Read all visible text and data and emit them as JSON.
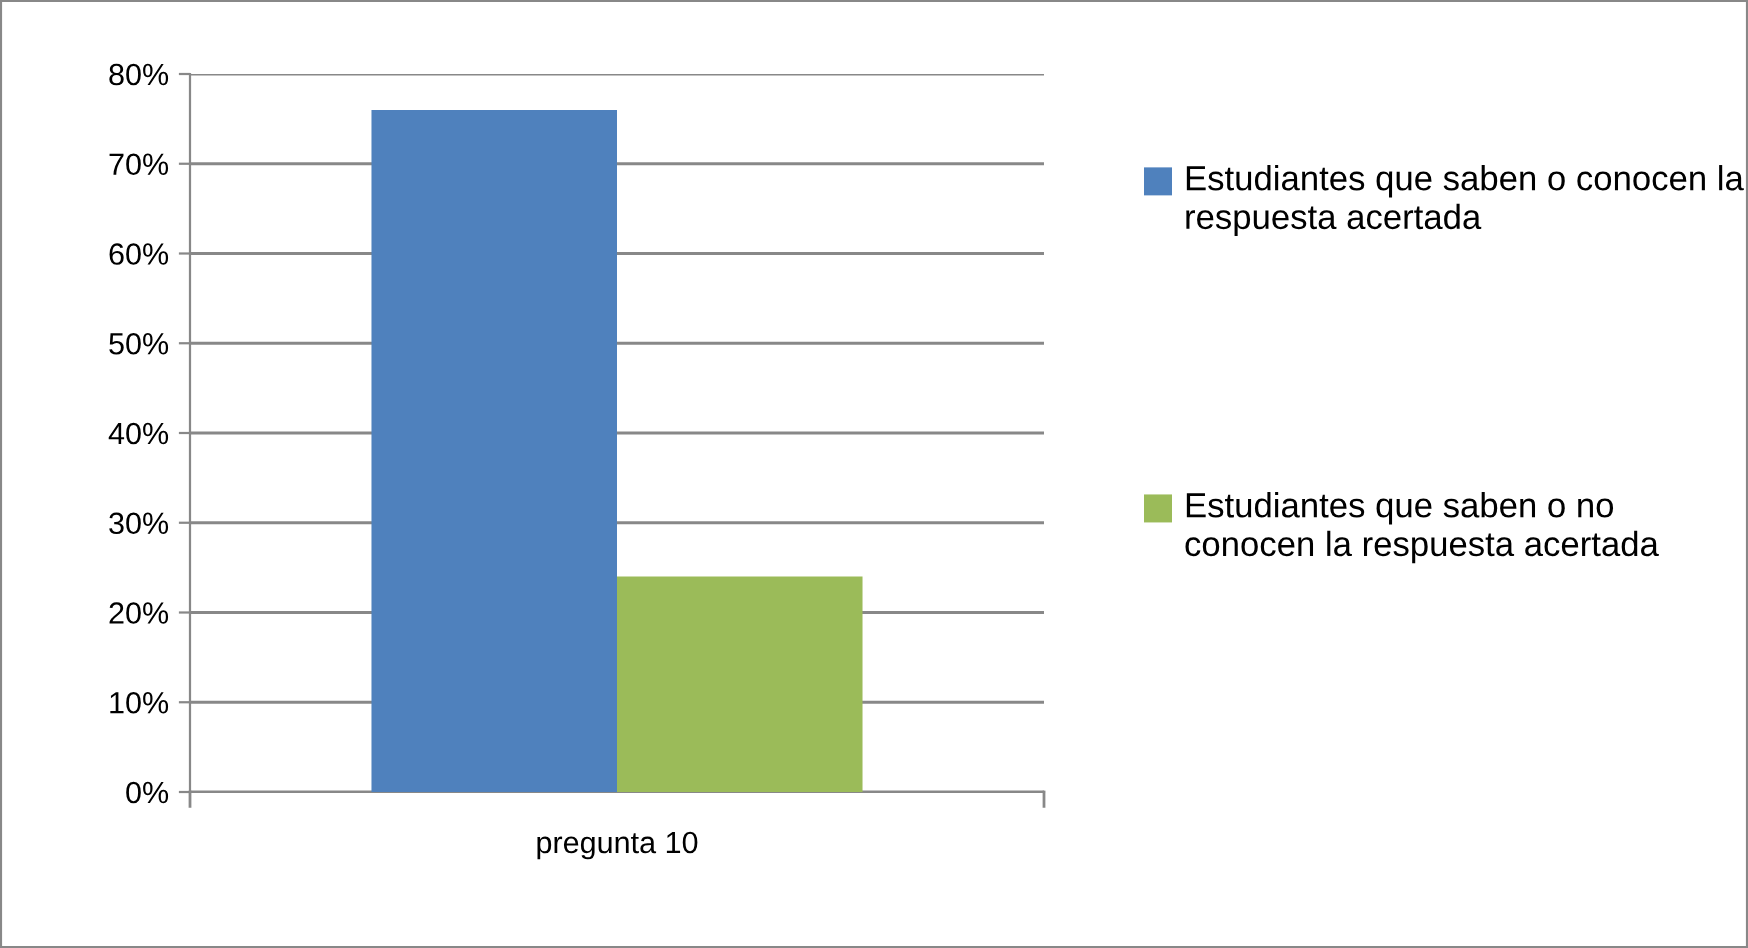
{
  "chart_data": {
    "type": "bar",
    "categories": [
      "pregunta 10"
    ],
    "series": [
      {
        "name": "Estudiantes que saben o conocen la respuesta acertada",
        "color": "#4f81bd",
        "values": [
          76
        ]
      },
      {
        "name": "Estudiantes que saben o no conocen la respuesta acertada",
        "color": "#9bbb59",
        "values": [
          24
        ]
      }
    ],
    "ylim": [
      0,
      80
    ],
    "yticks": [
      {
        "value": 0,
        "label": "0%"
      },
      {
        "value": 10,
        "label": "10%"
      },
      {
        "value": 20,
        "label": "20%"
      },
      {
        "value": 30,
        "label": "30%"
      },
      {
        "value": 40,
        "label": "40%"
      },
      {
        "value": 50,
        "label": "50%"
      },
      {
        "value": 60,
        "label": "60%"
      },
      {
        "value": 70,
        "label": "70%"
      },
      {
        "value": 80,
        "label": "80%"
      }
    ],
    "grid": "y",
    "legend": "right"
  }
}
